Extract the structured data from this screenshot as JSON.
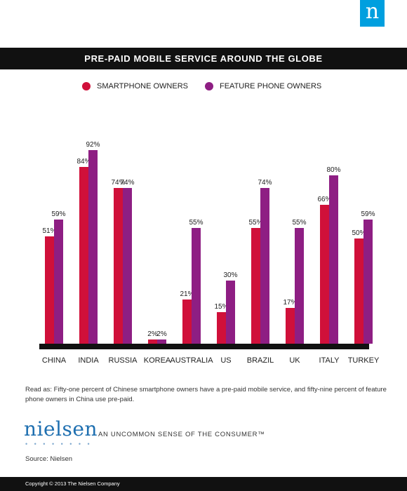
{
  "brand": {
    "logo_letter": "n",
    "logo_color": "#009fdf",
    "wordmark": "nielsen",
    "tagline": "AN UNCOMMON SENSE OF THE CONSUMER™"
  },
  "note": "Read as: Fifty-one percent of Chinese smartphone owners have a pre-paid mobile service, and fifty-nine percent of feature phone owners in China use pre-paid.",
  "source": "Source: Nielsen",
  "footer": "Copyright © 2013 The Nielsen Company",
  "chart_data": {
    "type": "bar",
    "title": "PRE-PAID MOBILE SERVICE AROUND THE GLOBE",
    "categories": [
      "CHINA",
      "INDIA",
      "RUSSIA",
      "KOREA",
      "AUSTRALIA",
      "US",
      "BRAZIL",
      "UK",
      "ITALY",
      "TURKEY"
    ],
    "series": [
      {
        "name": "SMARTPHONE OWNERS",
        "color": "#d0103a",
        "values": [
          51,
          84,
          74,
          2,
          21,
          15,
          55,
          17,
          66,
          50
        ]
      },
      {
        "name": "FEATURE PHONE OWNERS",
        "color": "#8e1e83",
        "values": [
          59,
          92,
          74,
          2,
          55,
          30,
          74,
          55,
          80,
          59
        ]
      }
    ],
    "value_suffix": "%",
    "ylim": [
      0,
      100
    ],
    "xlabel": "",
    "ylabel": "",
    "grid": false,
    "legend_position": "top"
  }
}
